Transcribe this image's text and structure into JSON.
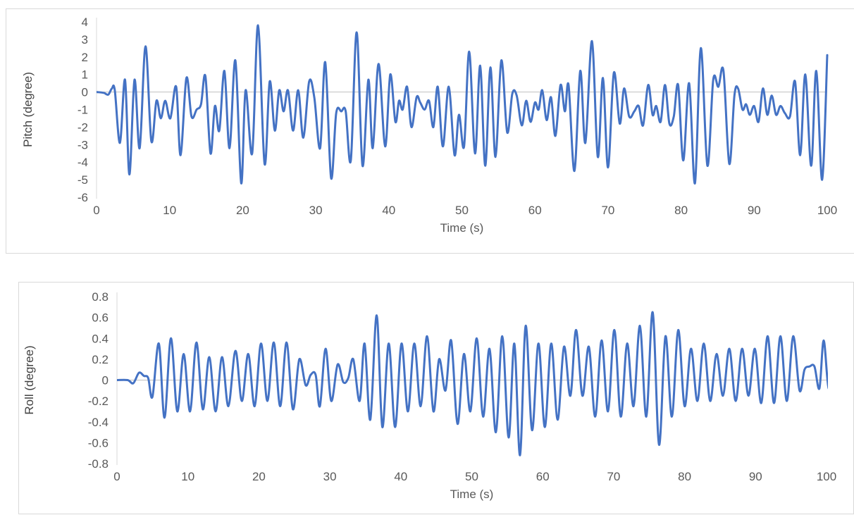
{
  "chart_data": [
    {
      "type": "line",
      "xlabel": "Time (s)",
      "ylabel": "Pitch (degree)",
      "xlim": [
        0,
        100
      ],
      "ylim": [
        -6,
        4
      ],
      "x_ticks": [
        "0",
        "10",
        "20",
        "30",
        "40",
        "50",
        "60",
        "70",
        "80",
        "90",
        "100"
      ],
      "y_ticks": [
        "4",
        "3",
        "2",
        "1",
        "0",
        "-1",
        "-2",
        "-3",
        "-4",
        "-5",
        "-6"
      ],
      "grid": false,
      "series": [
        {
          "color": "#4472c4",
          "points": [
            [
              0,
              0
            ],
            [
              1,
              -0.05
            ],
            [
              1.6,
              -0.15
            ],
            [
              2.1,
              0.2
            ],
            [
              2.5,
              0.1
            ],
            [
              3.2,
              -2.9
            ],
            [
              3.9,
              0.7
            ],
            [
              4.5,
              -4.7
            ],
            [
              5.2,
              0.7
            ],
            [
              5.9,
              -3.2
            ],
            [
              6.7,
              2.6
            ],
            [
              7.5,
              -2.8
            ],
            [
              8.2,
              -0.5
            ],
            [
              8.8,
              -1.5
            ],
            [
              9.4,
              -0.5
            ],
            [
              10.1,
              -1.5
            ],
            [
              10.9,
              0.3
            ],
            [
              11.5,
              -3.6
            ],
            [
              12.3,
              0.8
            ],
            [
              13,
              -1.4
            ],
            [
              13.7,
              -1.0
            ],
            [
              14.3,
              -0.7
            ],
            [
              14.9,
              0.9
            ],
            [
              15.6,
              -3.5
            ],
            [
              16.2,
              -0.8
            ],
            [
              16.8,
              -2.2
            ],
            [
              17.5,
              1.2
            ],
            [
              18.2,
              -3.2
            ],
            [
              19,
              1.8
            ],
            [
              19.8,
              -5.2
            ],
            [
              20.4,
              0.1
            ],
            [
              21.3,
              -3.5
            ],
            [
              22.1,
              3.8
            ],
            [
              23,
              -4.1
            ],
            [
              23.7,
              0.6
            ],
            [
              24.4,
              -2.2
            ],
            [
              25,
              0.1
            ],
            [
              25.6,
              -1.1
            ],
            [
              26.2,
              0.1
            ],
            [
              26.9,
              -2.2
            ],
            [
              27.6,
              0.1
            ],
            [
              28.3,
              -2.6
            ],
            [
              29.1,
              0.6
            ],
            [
              29.8,
              -0.3
            ],
            [
              30.6,
              -3.2
            ],
            [
              31.3,
              1.7
            ],
            [
              32.1,
              -4.9
            ],
            [
              32.8,
              -1.2
            ],
            [
              33.5,
              -1.1
            ],
            [
              34.1,
              -1.1
            ],
            [
              34.8,
              -3.9
            ],
            [
              35.6,
              3.4
            ],
            [
              36.4,
              -4.2
            ],
            [
              37.2,
              0.7
            ],
            [
              37.8,
              -3.2
            ],
            [
              38.6,
              1.6
            ],
            [
              39.5,
              -3.1
            ],
            [
              40.2,
              1.0
            ],
            [
              40.9,
              -1.7
            ],
            [
              41.4,
              -0.5
            ],
            [
              41.9,
              -1.0
            ],
            [
              42.5,
              0.3
            ],
            [
              43.1,
              -2.0
            ],
            [
              43.8,
              -0.3
            ],
            [
              44.3,
              -0.6
            ],
            [
              44.9,
              -1.0
            ],
            [
              45.5,
              -0.5
            ],
            [
              46.1,
              -2.0
            ],
            [
              46.7,
              0.3
            ],
            [
              47.4,
              -3.1
            ],
            [
              48.2,
              0.3
            ],
            [
              49,
              -3.6
            ],
            [
              49.6,
              -1.3
            ],
            [
              50.3,
              -3.1
            ],
            [
              51,
              2.3
            ],
            [
              51.8,
              -3.5
            ],
            [
              52.5,
              1.5
            ],
            [
              53.2,
              -4.2
            ],
            [
              53.9,
              1.4
            ],
            [
              54.6,
              -3.7
            ],
            [
              55.4,
              1.8
            ],
            [
              56.2,
              -2.3
            ],
            [
              56.9,
              -0.1
            ],
            [
              57.5,
              -0.2
            ],
            [
              58.2,
              -1.9
            ],
            [
              58.8,
              -0.5
            ],
            [
              59.4,
              -1.7
            ],
            [
              60,
              -0.6
            ],
            [
              60.5,
              -1.0
            ],
            [
              61,
              0.1
            ],
            [
              61.6,
              -1.6
            ],
            [
              62.2,
              -0.3
            ],
            [
              62.8,
              -2.5
            ],
            [
              63.5,
              0.4
            ],
            [
              64.1,
              -1.1
            ],
            [
              64.6,
              0.4
            ],
            [
              65.4,
              -4.5
            ],
            [
              66.2,
              1.2
            ],
            [
              66.9,
              -2.9
            ],
            [
              67.8,
              2.9
            ],
            [
              68.6,
              -3.7
            ],
            [
              69.3,
              0.8
            ],
            [
              70,
              -4.3
            ],
            [
              70.8,
              1.1
            ],
            [
              71.6,
              -1.8
            ],
            [
              72.2,
              0.2
            ],
            [
              72.9,
              -1.4
            ],
            [
              73.6,
              -1.1
            ],
            [
              74.2,
              -0.8
            ],
            [
              74.8,
              -1.9
            ],
            [
              75.5,
              0.4
            ],
            [
              76.1,
              -1.3
            ],
            [
              76.6,
              -0.8
            ],
            [
              77.2,
              -1.7
            ],
            [
              77.8,
              0.4
            ],
            [
              78.4,
              -1.8
            ],
            [
              79,
              -1.4
            ],
            [
              79.6,
              0.4
            ],
            [
              80.3,
              -3.9
            ],
            [
              81.1,
              0.5
            ],
            [
              81.9,
              -5.2
            ],
            [
              82.7,
              2.5
            ],
            [
              83.6,
              -4.2
            ],
            [
              84.4,
              0.7
            ],
            [
              85.1,
              0.3
            ],
            [
              85.8,
              1.2
            ],
            [
              86.6,
              -4.1
            ],
            [
              87.3,
              -0.2
            ],
            [
              87.8,
              0.2
            ],
            [
              88.4,
              -1.0
            ],
            [
              88.9,
              -0.7
            ],
            [
              89.4,
              -1.3
            ],
            [
              90,
              -0.8
            ],
            [
              90.6,
              -1.7
            ],
            [
              91.2,
              0.2
            ],
            [
              91.8,
              -1.3
            ],
            [
              92.4,
              -0.2
            ],
            [
              93,
              -1.3
            ],
            [
              93.6,
              -0.8
            ],
            [
              94.2,
              -1.2
            ],
            [
              94.9,
              -1.4
            ],
            [
              95.6,
              0.6
            ],
            [
              96.3,
              -3.6
            ],
            [
              97,
              1.0
            ],
            [
              97.8,
              -4.2
            ],
            [
              98.5,
              1.2
            ],
            [
              99.3,
              -5.0
            ],
            [
              100,
              2.1
            ]
          ]
        }
      ]
    },
    {
      "type": "line",
      "xlabel": "Time (s)",
      "ylabel": "Roll (degree)",
      "xlim": [
        0,
        100
      ],
      "ylim": [
        -0.8,
        0.8
      ],
      "x_ticks": [
        "0",
        "10",
        "20",
        "30",
        "40",
        "50",
        "60",
        "70",
        "80",
        "90",
        "100"
      ],
      "y_ticks": [
        "0.8",
        "0.6",
        "0.4",
        "0.2",
        "0",
        "-0.2",
        "-0.4",
        "-0.6",
        "-0.8"
      ],
      "grid": false,
      "series": [
        {
          "color": "#4472c4",
          "points": [
            [
              0,
              0
            ],
            [
              1.5,
              0
            ],
            [
              2.3,
              -0.03
            ],
            [
              3.1,
              0.07
            ],
            [
              3.8,
              0.04
            ],
            [
              4.4,
              0.02
            ],
            [
              5,
              -0.16
            ],
            [
              5.9,
              0.35
            ],
            [
              6.7,
              -0.36
            ],
            [
              7.6,
              0.4
            ],
            [
              8.5,
              -0.3
            ],
            [
              9.4,
              0.25
            ],
            [
              10.3,
              -0.3
            ],
            [
              11.2,
              0.36
            ],
            [
              12.1,
              -0.28
            ],
            [
              13,
              0.22
            ],
            [
              13.9,
              -0.3
            ],
            [
              14.8,
              0.22
            ],
            [
              15.7,
              -0.25
            ],
            [
              16.7,
              0.28
            ],
            [
              17.6,
              -0.2
            ],
            [
              18.5,
              0.25
            ],
            [
              19.4,
              -0.25
            ],
            [
              20.3,
              0.35
            ],
            [
              21.2,
              -0.2
            ],
            [
              22.1,
              0.36
            ],
            [
              23,
              -0.25
            ],
            [
              23.9,
              0.36
            ],
            [
              24.8,
              -0.28
            ],
            [
              25.7,
              0.2
            ],
            [
              26.6,
              -0.05
            ],
            [
              27.3,
              0.05
            ],
            [
              28,
              0.05
            ],
            [
              28.6,
              -0.25
            ],
            [
              29.4,
              0.3
            ],
            [
              30.2,
              -0.2
            ],
            [
              31.1,
              0.15
            ],
            [
              31.9,
              -0.02
            ],
            [
              32.6,
              0.02
            ],
            [
              33.3,
              0.2
            ],
            [
              34.2,
              -0.2
            ],
            [
              34.9,
              0.35
            ],
            [
              35.7,
              -0.38
            ],
            [
              36.6,
              0.62
            ],
            [
              37.4,
              -0.45
            ],
            [
              38.3,
              0.35
            ],
            [
              39.2,
              -0.45
            ],
            [
              40.1,
              0.35
            ],
            [
              41,
              -0.3
            ],
            [
              41.9,
              0.35
            ],
            [
              42.8,
              -0.25
            ],
            [
              43.7,
              0.42
            ],
            [
              44.6,
              -0.3
            ],
            [
              45.4,
              0.2
            ],
            [
              46.3,
              -0.1
            ],
            [
              47.1,
              0.38
            ],
            [
              48,
              -0.42
            ],
            [
              48.9,
              0.25
            ],
            [
              49.8,
              -0.3
            ],
            [
              50.7,
              0.4
            ],
            [
              51.6,
              -0.35
            ],
            [
              52.5,
              0.3
            ],
            [
              53.4,
              -0.5
            ],
            [
              54.3,
              0.42
            ],
            [
              55.2,
              -0.55
            ],
            [
              56,
              0.35
            ],
            [
              56.8,
              -0.72
            ],
            [
              57.6,
              0.52
            ],
            [
              58.5,
              -0.48
            ],
            [
              59.4,
              0.35
            ],
            [
              60.3,
              -0.45
            ],
            [
              61.2,
              0.35
            ],
            [
              62.1,
              -0.38
            ],
            [
              63,
              0.32
            ],
            [
              63.9,
              -0.15
            ],
            [
              64.7,
              0.48
            ],
            [
              65.6,
              -0.15
            ],
            [
              66.5,
              0.32
            ],
            [
              67.4,
              -0.35
            ],
            [
              68.3,
              0.38
            ],
            [
              69.2,
              -0.3
            ],
            [
              70.1,
              0.48
            ],
            [
              71,
              -0.35
            ],
            [
              71.9,
              0.35
            ],
            [
              72.8,
              -0.25
            ],
            [
              73.7,
              0.52
            ],
            [
              74.6,
              -0.35
            ],
            [
              75.5,
              0.65
            ],
            [
              76.4,
              -0.62
            ],
            [
              77.3,
              0.42
            ],
            [
              78.2,
              -0.35
            ],
            [
              79.1,
              0.48
            ],
            [
              80,
              -0.25
            ],
            [
              80.9,
              0.3
            ],
            [
              81.8,
              -0.2
            ],
            [
              82.7,
              0.35
            ],
            [
              83.6,
              -0.2
            ],
            [
              84.5,
              0.25
            ],
            [
              85.4,
              -0.15
            ],
            [
              86.3,
              0.3
            ],
            [
              87.2,
              -0.2
            ],
            [
              88.1,
              0.3
            ],
            [
              89,
              -0.15
            ],
            [
              89.9,
              0.3
            ],
            [
              90.8,
              -0.22
            ],
            [
              91.7,
              0.42
            ],
            [
              92.6,
              -0.22
            ],
            [
              93.5,
              0.42
            ],
            [
              94.4,
              -0.2
            ],
            [
              95.3,
              0.42
            ],
            [
              96.2,
              -0.1
            ],
            [
              96.9,
              0.1
            ],
            [
              97.6,
              0.13
            ],
            [
              98.3,
              0.13
            ],
            [
              99,
              -0.08
            ],
            [
              99.6,
              0.38
            ],
            [
              100.3,
              -0.08
            ],
            [
              101,
              0.22
            ]
          ]
        }
      ]
    }
  ]
}
